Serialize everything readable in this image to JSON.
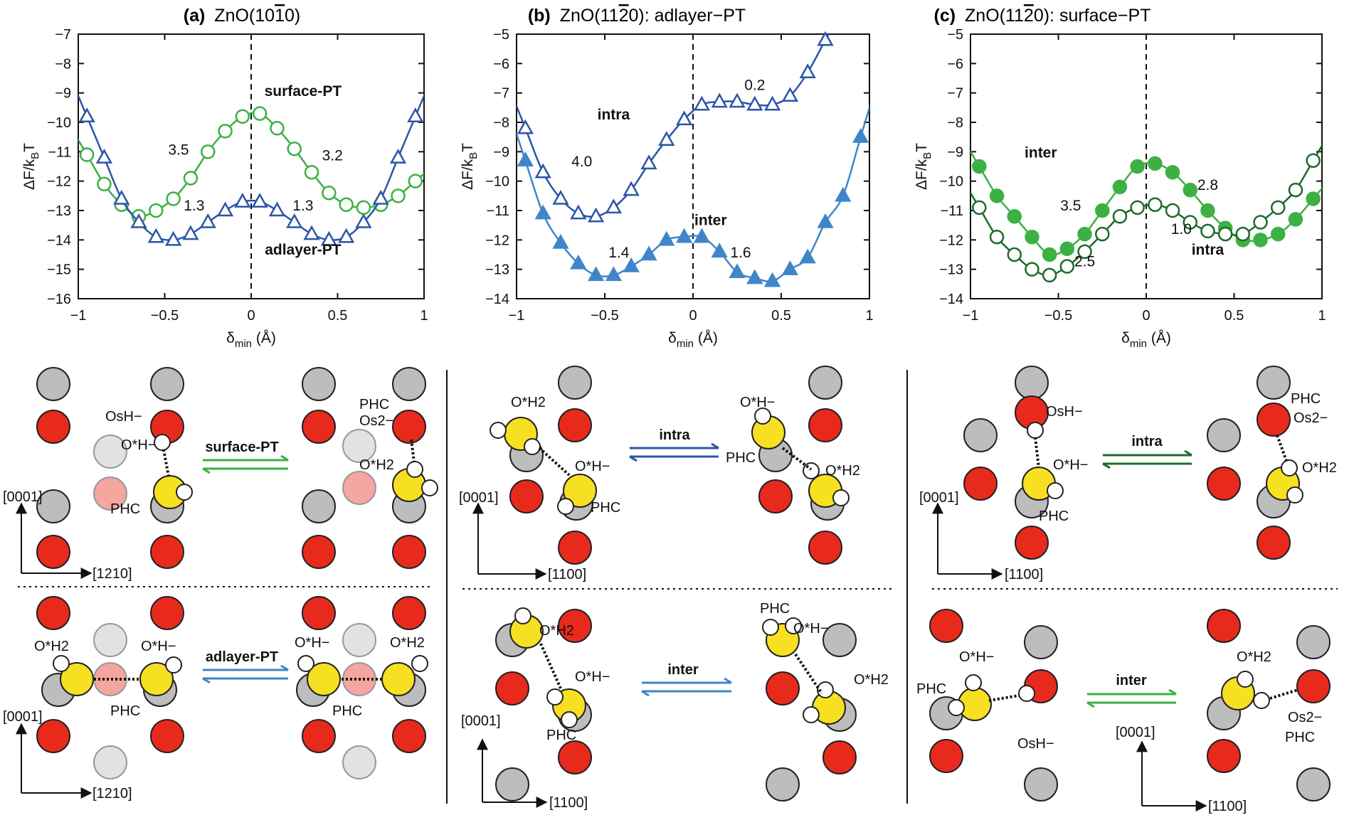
{
  "colors": {
    "green": "#3cb043",
    "dark_green": "#1d6b2a",
    "blue": "#2b55a8",
    "light_blue": "#3f86c9",
    "oxygen_red": "#e82a1c",
    "zinc_gray": "#bdbdbd",
    "pink": "#f4a6a0",
    "light_gray": "#e2e2e2",
    "hydrogen_white": "#ffffff",
    "yellow": "#f7e022"
  },
  "chart_data": [
    {
      "type": "line",
      "panel_label": "(a)",
      "title": "ZnO(10",
      "title_bar": "1",
      "title_end": "0)",
      "xlabel": "δmin (Å)",
      "ylabel": "ΔF/kBT",
      "xlim": [
        -1,
        1
      ],
      "ylim": [
        -16,
        -7
      ],
      "xticks": [
        "−1",
        "−0.5",
        "0",
        "0.5",
        "1"
      ],
      "yticks": [
        "−16",
        "−15",
        "−14",
        "−13",
        "−12",
        "−11",
        "−10",
        "−9",
        "−8",
        "−7"
      ],
      "grid": false,
      "series": [
        {
          "name": "surface-PT",
          "marker": "circle-open",
          "color": "#3cb043",
          "x": [
            -0.95,
            -0.85,
            -0.75,
            -0.65,
            -0.55,
            -0.45,
            -0.35,
            -0.25,
            -0.15,
            -0.05,
            0.05,
            0.15,
            0.25,
            0.35,
            0.45,
            0.55,
            0.65,
            0.75,
            0.85,
            0.95
          ],
          "y": [
            -11.1,
            -12.1,
            -12.8,
            -13.2,
            -13.0,
            -12.6,
            -11.9,
            -11.0,
            -10.3,
            -9.8,
            -9.7,
            -10.2,
            -10.9,
            -11.7,
            -12.4,
            -12.8,
            -12.9,
            -12.8,
            -12.5,
            -12.0
          ]
        },
        {
          "name": "adlayer-PT",
          "marker": "triangle-open",
          "color": "#2b55a8",
          "x": [
            -0.95,
            -0.85,
            -0.75,
            -0.65,
            -0.55,
            -0.45,
            -0.35,
            -0.25,
            -0.15,
            -0.05,
            0.05,
            0.15,
            0.25,
            0.35,
            0.45,
            0.55,
            0.65,
            0.75,
            0.85,
            0.95
          ],
          "y": [
            -9.8,
            -11.2,
            -12.6,
            -13.4,
            -13.9,
            -14.0,
            -13.8,
            -13.4,
            -13.0,
            -12.7,
            -12.7,
            -13.0,
            -13.4,
            -13.8,
            -14.0,
            -13.9,
            -13.4,
            -12.6,
            -11.2,
            -9.8
          ]
        }
      ],
      "annotations": [
        {
          "text": "surface-PT",
          "bold": true,
          "color": "#3cb043",
          "x": 0.3,
          "y": -9.1
        },
        {
          "text": "adlayer-PT",
          "bold": true,
          "color": "#3f86c9",
          "x": 0.3,
          "y": -14.5
        },
        {
          "text": "3.5",
          "x": -0.42,
          "y": -11.1
        },
        {
          "text": "3.2",
          "x": 0.47,
          "y": -11.3
        },
        {
          "text": "1.3",
          "x": -0.33,
          "y": -13.0
        },
        {
          "text": "1.3",
          "x": 0.3,
          "y": -13.0
        }
      ]
    },
    {
      "type": "line",
      "panel_label": "(b)",
      "title": "ZnO(11",
      "title_bar": "2",
      "title_end": "0): adlayer−PT",
      "xlabel": "δmin (Å)",
      "ylabel": "ΔF/kBT",
      "xlim": [
        -1,
        1
      ],
      "ylim": [
        -14,
        -5
      ],
      "xticks": [
        "−1",
        "−0.5",
        "0",
        "0.5",
        "1"
      ],
      "yticks": [
        "−14",
        "−13",
        "−12",
        "−11",
        "−10",
        "−9",
        "−8",
        "−7",
        "−6",
        "−5"
      ],
      "grid": false,
      "series": [
        {
          "name": "intra",
          "marker": "triangle-open",
          "color": "#2b55a8",
          "x": [
            -0.95,
            -0.85,
            -0.75,
            -0.65,
            -0.55,
            -0.45,
            -0.35,
            -0.25,
            -0.15,
            -0.05,
            0.05,
            0.15,
            0.25,
            0.35,
            0.45,
            0.55,
            0.65,
            0.75
          ],
          "y": [
            -8.2,
            -9.7,
            -10.6,
            -11.1,
            -11.2,
            -10.9,
            -10.3,
            -9.4,
            -8.6,
            -7.9,
            -7.4,
            -7.3,
            -7.3,
            -7.4,
            -7.4,
            -7.1,
            -6.3,
            -5.2
          ]
        },
        {
          "name": "inter",
          "marker": "triangle-filled",
          "color": "#3f86c9",
          "x": [
            -0.95,
            -0.85,
            -0.75,
            -0.65,
            -0.55,
            -0.45,
            -0.35,
            -0.25,
            -0.15,
            -0.05,
            0.05,
            0.15,
            0.25,
            0.35,
            0.45,
            0.55,
            0.65,
            0.75,
            0.85,
            0.95
          ],
          "y": [
            -9.3,
            -11.1,
            -12.1,
            -12.8,
            -13.2,
            -13.2,
            -12.9,
            -12.5,
            -12.0,
            -11.9,
            -11.9,
            -12.4,
            -13.1,
            -13.3,
            -13.4,
            -13.0,
            -12.6,
            -11.4,
            -10.5,
            -8.5
          ]
        }
      ],
      "annotations": [
        {
          "text": "intra",
          "bold": true,
          "color": "#2b55a8",
          "x": -0.45,
          "y": -7.9
        },
        {
          "text": "inter",
          "bold": true,
          "color": "#3f86c9",
          "x": 0.1,
          "y": -11.5
        },
        {
          "text": "0.2",
          "x": 0.35,
          "y": -6.9
        },
        {
          "text": "4.0",
          "x": -0.63,
          "y": -9.5
        },
        {
          "text": "1.4",
          "x": -0.42,
          "y": -12.6
        },
        {
          "text": "1.6",
          "x": 0.27,
          "y": -12.6
        }
      ]
    },
    {
      "type": "line",
      "panel_label": "(c)",
      "title": "ZnO(11",
      "title_bar": "2",
      "title_end": "0): surface−PT",
      "xlabel": "δmin (Å)",
      "ylabel": "ΔF/kBT",
      "xlim": [
        -1,
        1
      ],
      "ylim": [
        -14,
        -5
      ],
      "xticks": [
        "−1",
        "−0.5",
        "0",
        "0.5",
        "1"
      ],
      "yticks": [
        "−14",
        "−13",
        "−12",
        "−11",
        "−10",
        "−9",
        "−8",
        "−7",
        "−6",
        "−5"
      ],
      "grid": false,
      "series": [
        {
          "name": "inter",
          "marker": "circle-filled",
          "color": "#3cb043",
          "x": [
            -0.95,
            -0.85,
            -0.75,
            -0.65,
            -0.55,
            -0.45,
            -0.35,
            -0.25,
            -0.15,
            -0.05,
            0.05,
            0.15,
            0.25,
            0.35,
            0.45,
            0.55,
            0.65,
            0.75,
            0.85,
            0.95
          ],
          "y": [
            -9.5,
            -10.5,
            -11.2,
            -11.9,
            -12.5,
            -12.3,
            -11.8,
            -11.0,
            -10.2,
            -9.5,
            -9.4,
            -9.7,
            -10.3,
            -11.0,
            -11.6,
            -12.0,
            -12.0,
            -11.8,
            -11.3,
            -10.6
          ]
        },
        {
          "name": "intra",
          "marker": "circle-open",
          "color": "#1d6b2a",
          "x": [
            -0.95,
            -0.85,
            -0.75,
            -0.65,
            -0.55,
            -0.45,
            -0.35,
            -0.25,
            -0.15,
            -0.05,
            0.05,
            0.15,
            0.25,
            0.35,
            0.45,
            0.55,
            0.65,
            0.75,
            0.85,
            0.95
          ],
          "y": [
            -10.9,
            -11.9,
            -12.5,
            -13.0,
            -13.2,
            -12.9,
            -12.4,
            -11.8,
            -11.2,
            -10.9,
            -10.8,
            -11.0,
            -11.4,
            -11.7,
            -11.8,
            -11.8,
            -11.4,
            -10.9,
            -10.3,
            -9.3
          ]
        }
      ],
      "annotations": [
        {
          "text": "inter",
          "bold": true,
          "color": "#3cb043",
          "x": -0.6,
          "y": -9.2
        },
        {
          "text": "intra",
          "bold": true,
          "color": "#1d6b2a",
          "x": 0.35,
          "y": -12.5
        },
        {
          "text": "3.5",
          "x": -0.43,
          "y": -11.0
        },
        {
          "text": "2.8",
          "x": 0.35,
          "y": -10.3
        },
        {
          "text": "1.0",
          "x": 0.2,
          "y": -11.8
        },
        {
          "text": "2.5",
          "x": -0.35,
          "y": -12.9
        }
      ]
    }
  ],
  "labels": {
    "a_top": {
      "OsH": "OsH−",
      "OH": "O*H−",
      "PHC_left": "PHC",
      "PHC_right": "PHC",
      "Os2": "Os2−",
      "OH2_right": "O*H2",
      "arrow": "surface-PT"
    },
    "a_bottom": {
      "OH2_left": "O*H2",
      "OH_left": "O*H−",
      "PHC_left": "PHC",
      "OH_right": "O*H−",
      "OH2_right": "O*H2",
      "PHC_right": "PHC",
      "arrow": "adlayer-PT"
    },
    "b_top": {
      "OH2_left": "O*H2",
      "OH_left": "O*H−",
      "PHC_left": "PHC",
      "OH_right": "O*H−",
      "PHC_right": "PHC",
      "OH2_right": "O*H2",
      "arrow": "intra"
    },
    "b_bottom": {
      "OH2_left": "O*H2",
      "OH_left": "O*H−",
      "PHC_left": "PHC",
      "PHC_right": "PHC",
      "OH_right": "O*H−",
      "OH2_right": "O*H2",
      "arrow": "inter"
    },
    "c_top": {
      "OsH": "OsH−",
      "OH_left": "O*H−",
      "PHC_left": "PHC",
      "PHC_right": "PHC",
      "Os2": "Os2−",
      "OH2_right": "O*H2",
      "arrow": "intra"
    },
    "c_bottom": {
      "OH_left": "O*H−",
      "PHC_left": "PHC",
      "OsH": "OsH−",
      "OH2_right": "O*H2",
      "Os2": "Os2−",
      "PHC_right": "PHC",
      "arrow": "inter"
    },
    "axes": {
      "a_vertical": "[0001]",
      "a_horizontal": "[1210]",
      "bc_vertical": "[0001]",
      "bc_horizontal": "[1100]"
    }
  }
}
